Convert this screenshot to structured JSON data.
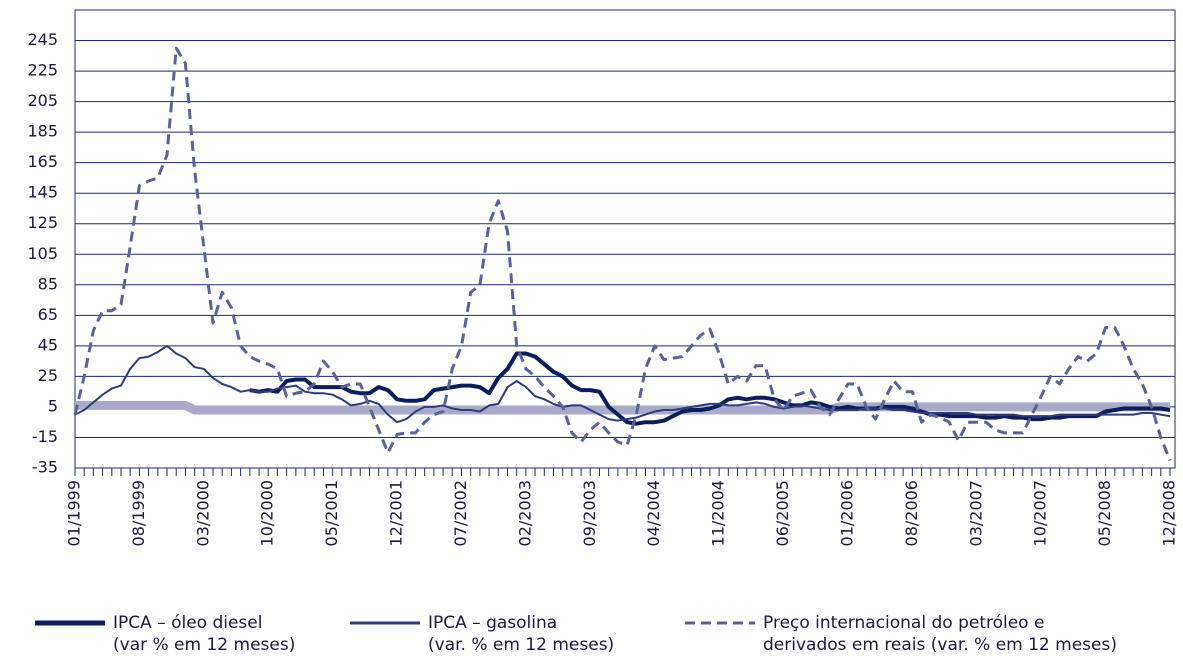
{
  "chart_data": {
    "type": "line",
    "categories": [
      "01/1999",
      null,
      null,
      null,
      null,
      null,
      null,
      "08/1999",
      null,
      null,
      null,
      null,
      null,
      null,
      "03/2000",
      null,
      null,
      null,
      null,
      null,
      null,
      "10/2000",
      null,
      null,
      null,
      null,
      null,
      null,
      "05/2001",
      null,
      null,
      null,
      null,
      null,
      null,
      "12/2001",
      null,
      null,
      null,
      null,
      null,
      null,
      "07/2002",
      null,
      null,
      null,
      null,
      null,
      null,
      "02/2003",
      null,
      null,
      null,
      null,
      null,
      null,
      "09/2003",
      null,
      null,
      null,
      null,
      null,
      null,
      "04/2004",
      null,
      null,
      null,
      null,
      null,
      null,
      "11/2004",
      null,
      null,
      null,
      null,
      null,
      null,
      "06/2005",
      null,
      null,
      null,
      null,
      null,
      null,
      "01/2006",
      null,
      null,
      null,
      null,
      null,
      null,
      "08/2006",
      null,
      null,
      null,
      null,
      null,
      null,
      "03/2007",
      null,
      null,
      null,
      null,
      null,
      null,
      "10/2007",
      null,
      null,
      null,
      null,
      null,
      null,
      "05/2008",
      null,
      null,
      null,
      null,
      null,
      null,
      "12/2008"
    ],
    "series": [
      {
        "color": "#a9a9c9",
        "values": [
          6,
          6,
          6,
          6,
          6,
          6,
          6,
          6,
          6,
          6,
          6,
          6,
          6,
          3,
          3,
          3,
          3,
          3,
          3,
          3,
          3,
          3,
          3,
          3,
          3,
          3,
          3,
          3,
          3,
          3,
          3,
          3,
          3,
          3,
          3,
          3,
          3,
          3,
          3,
          3,
          3,
          3,
          3,
          3,
          3,
          3,
          3,
          3,
          3,
          3,
          3,
          3,
          3,
          3,
          3,
          3,
          3,
          3,
          3,
          3,
          3,
          3,
          3,
          3,
          3,
          3,
          3,
          3,
          3,
          3,
          3,
          3,
          3,
          3,
          3,
          3,
          3,
          3,
          3,
          3,
          3,
          3,
          3,
          5,
          5,
          5,
          5,
          5,
          5,
          5,
          5,
          5,
          5,
          5,
          5,
          5,
          5,
          5,
          5,
          5,
          5,
          5,
          5,
          5,
          5,
          5,
          5,
          5,
          5,
          5,
          5,
          5,
          5,
          5,
          5,
          5,
          5,
          5,
          5,
          5
        ]
      },
      {
        "name": "IPCA – óleo diesel\n(var % em 12 meses)",
        "color": "#0c1d5e",
        "values": [
          null,
          null,
          null,
          null,
          null,
          null,
          null,
          null,
          null,
          null,
          null,
          null,
          null,
          null,
          null,
          null,
          null,
          null,
          null,
          16,
          15,
          16,
          15,
          22,
          23,
          23,
          18,
          18,
          18,
          18,
          15,
          14,
          14,
          18,
          16,
          10,
          9,
          9,
          10,
          16,
          17,
          18,
          19,
          19,
          18,
          14,
          24,
          30,
          40,
          40,
          38,
          33,
          28,
          25,
          19,
          16,
          16,
          15,
          5,
          0,
          -5,
          -6,
          -5,
          -5,
          -4,
          -1,
          2,
          3,
          3,
          4,
          6,
          10,
          11,
          10,
          11,
          11,
          10,
          8,
          6,
          6,
          8,
          7,
          5,
          4,
          5,
          4,
          4,
          4,
          5,
          5,
          5,
          4,
          2,
          0,
          0,
          -1,
          -1,
          -1,
          -1,
          -2,
          -2,
          -1,
          -2,
          -2,
          -3,
          -3,
          -2,
          -2,
          -1,
          -1,
          -1,
          -1,
          2,
          3,
          4,
          4,
          4,
          4,
          4,
          3
        ]
      },
      {
        "name": "IPCA – gasolina\n(var. % em 12 meses)",
        "color": "#2f3b7c",
        "values": [
          0,
          3,
          8,
          13,
          17,
          19,
          30,
          37,
          38,
          41,
          45,
          40,
          37,
          31,
          30,
          24,
          20,
          18,
          15,
          16,
          15,
          15,
          17,
          18,
          19,
          15,
          14,
          14,
          13,
          10,
          6,
          7,
          9,
          7,
          0,
          -5,
          -3,
          2,
          5,
          5,
          6,
          4,
          3,
          3,
          2,
          6,
          7,
          18,
          22,
          18,
          12,
          10,
          7,
          5,
          6,
          6,
          3,
          0,
          -3,
          -4,
          -3,
          -2,
          0,
          2,
          3,
          3,
          4,
          5,
          6,
          7,
          7,
          6,
          6,
          7,
          8,
          7,
          5,
          4,
          5,
          6,
          5,
          4,
          3,
          3,
          3,
          3,
          4,
          4,
          4,
          3,
          3,
          2,
          1,
          1,
          1,
          1,
          1,
          1,
          0,
          0,
          0,
          0,
          0,
          -1,
          -1,
          -1,
          -1,
          0,
          0,
          0,
          0,
          0,
          0,
          0,
          0,
          0,
          1,
          1,
          0,
          -1
        ]
      },
      {
        "name": "Preço internacional do petróleo e\nderivados em reais (var. % em 12 meses)",
        "color": "#5a6399",
        "dashed": true,
        "values": [
          0,
          25,
          55,
          68,
          68,
          72,
          110,
          150,
          153,
          155,
          170,
          240,
          230,
          160,
          110,
          60,
          80,
          70,
          45,
          38,
          35,
          33,
          30,
          12,
          14,
          15,
          20,
          35,
          28,
          18,
          20,
          20,
          5,
          -10,
          -25,
          -13,
          -12,
          -12,
          -5,
          0,
          2,
          30,
          45,
          80,
          85,
          125,
          140,
          120,
          45,
          30,
          25,
          18,
          12,
          5,
          -12,
          -18,
          -10,
          -5,
          -12,
          -18,
          -20,
          0,
          30,
          45,
          36,
          37,
          38,
          45,
          52,
          56,
          40,
          20,
          25,
          22,
          32,
          32,
          10,
          3,
          12,
          14,
          16,
          5,
          0,
          10,
          20,
          20,
          5,
          -3,
          10,
          22,
          15,
          15,
          -5,
          0,
          -2,
          -5,
          -17,
          -5,
          -5,
          -5,
          -10,
          -12,
          -12,
          -12,
          0,
          12,
          25,
          20,
          30,
          38,
          35,
          40,
          57,
          57,
          45,
          30,
          20,
          5,
          -15,
          -30
        ]
      }
    ],
    "ylim": [
      -35,
      265
    ],
    "yticks": [
      -35,
      -15,
      5,
      25,
      45,
      65,
      85,
      105,
      125,
      145,
      165,
      185,
      205,
      225,
      245
    ],
    "grid": true,
    "legend": "bottom"
  }
}
